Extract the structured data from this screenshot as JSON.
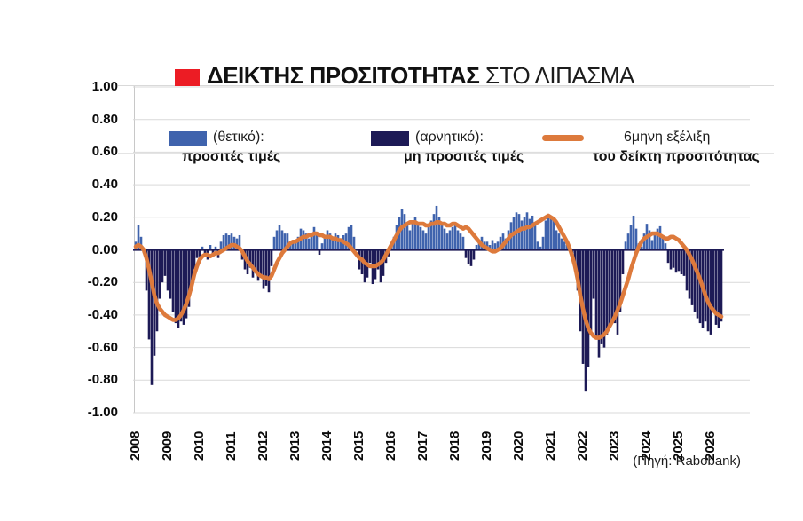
{
  "title": {
    "highlight": "ΔΕΙΚΤΗΣ ΠΡΟΣΙΤΟΤΗΤΑΣ",
    "rest": " ΣΤΟ ΛΙΠΑΣΜΑ"
  },
  "source": "(Πηγή: Rabobank)",
  "legend": {
    "positive": {
      "label": "(θετικό):",
      "sublabel": "προσιτές τιμές"
    },
    "negative": {
      "label": "(αρνητικό):",
      "sublabel": "μη προσιτές τιμές"
    },
    "line": {
      "label": "6μηνη εξέλιξη",
      "sublabel": "του δείκτη προσιτότητας"
    }
  },
  "colors": {
    "positive_bar": "#3f63ad",
    "negative_bar": "#1d1a56",
    "line": "#dd7a3c",
    "title_square": "#ec1c24",
    "grid": "#d9d9d9",
    "axis": "#c8c8c8",
    "zero_axis": "#1d1a56"
  },
  "chart_data": {
    "type": "bar",
    "title": "ΔΕΙΚΤΗΣ ΠΡΟΣΙΤΟΤΗΤΑΣ ΣΤΟ ΛΙΠΑΣΜΑ",
    "frequency": "monthly",
    "start_month": "2008-01",
    "end_month": "2026-05",
    "ylim": [
      -1.0,
      1.0
    ],
    "grid": true,
    "y_ticks": [
      "1.00",
      "0.80",
      "0.60",
      "0.40",
      "0.20",
      "0.00",
      "-0.20",
      "-0.40",
      "-0.60",
      "-0.80",
      "-1.00"
    ],
    "x_years": [
      "2008",
      "2009",
      "2010",
      "2011",
      "2012",
      "2013",
      "2014",
      "2015",
      "2016",
      "2017",
      "2018",
      "2019",
      "2020",
      "2021",
      "2022",
      "2023",
      "2024",
      "2025",
      "2026"
    ],
    "series": [
      {
        "name": "affordability index (monthly bars: blue positive / navy negative)",
        "by_year": {
          "2008": [
            0.05,
            0.15,
            0.08,
            -0.02,
            -0.25,
            -0.55,
            -0.83,
            -0.65,
            -0.5,
            -0.3,
            -0.2,
            -0.16
          ],
          "2009": [
            -0.25,
            -0.3,
            -0.38,
            -0.45,
            -0.48,
            -0.44,
            -0.46,
            -0.42,
            -0.35,
            -0.25,
            -0.12,
            -0.05
          ],
          "2010": [
            -0.04,
            0.02,
            -0.03,
            -0.06,
            0.03,
            -0.04,
            0.02,
            -0.05,
            0.05,
            0.09,
            0.1,
            0.09
          ],
          "2011": [
            0.1,
            0.08,
            0.07,
            0.09,
            -0.06,
            -0.12,
            -0.15,
            -0.11,
            -0.17,
            -0.14,
            -0.19,
            -0.16
          ],
          "2012": [
            -0.24,
            -0.22,
            -0.26,
            -0.1,
            0.08,
            0.12,
            0.15,
            0.12,
            0.1,
            0.1,
            0.05,
            0.04
          ],
          "2013": [
            0.05,
            0.08,
            0.13,
            0.12,
            0.1,
            0.07,
            0.1,
            0.14,
            0.1,
            -0.03,
            0.04,
            0.08
          ],
          "2014": [
            0.12,
            0.1,
            0.08,
            0.1,
            0.09,
            0.07,
            0.09,
            0.1,
            0.14,
            0.15,
            0.08,
            0.0
          ],
          "2015": [
            -0.12,
            -0.15,
            -0.2,
            -0.17,
            -0.08,
            -0.21,
            -0.18,
            -0.12,
            -0.2,
            -0.16,
            -0.08,
            -0.04
          ],
          "2016": [
            0.02,
            0.08,
            0.15,
            0.2,
            0.25,
            0.22,
            0.15,
            0.12,
            0.18,
            0.2,
            0.16,
            0.14
          ],
          "2017": [
            0.12,
            0.1,
            0.15,
            0.18,
            0.22,
            0.27,
            0.2,
            0.16,
            0.13,
            0.1,
            0.12,
            0.14
          ],
          "2018": [
            0.15,
            0.12,
            0.1,
            0.08,
            -0.05,
            -0.09,
            -0.1,
            -0.06,
            0.03,
            0.06,
            0.08,
            0.05
          ],
          "2019": [
            0.05,
            0.03,
            0.06,
            0.04,
            0.05,
            0.08,
            0.1,
            0.07,
            0.12,
            0.17,
            0.2,
            0.23
          ],
          "2020": [
            0.22,
            0.18,
            0.2,
            0.23,
            0.19,
            0.21,
            0.17,
            0.05,
            0.02,
            0.08,
            0.18,
            0.2
          ],
          "2021": [
            0.21,
            0.18,
            0.12,
            0.1,
            0.07,
            0.05,
            0.03,
            0.01,
            -0.02,
            -0.1,
            -0.25,
            -0.5
          ],
          "2022": [
            -0.7,
            -0.87,
            -0.72,
            -0.5,
            -0.3,
            -0.55,
            -0.66,
            -0.58,
            -0.6,
            -0.52,
            -0.48,
            -0.45
          ],
          "2023": [
            -0.45,
            -0.52,
            -0.38,
            -0.15,
            0.05,
            0.1,
            0.15,
            0.21,
            0.13,
            0.04,
            0.02,
            0.1
          ],
          "2024": [
            0.16,
            0.12,
            0.06,
            0.1,
            0.13,
            0.145,
            0.08,
            0.04,
            -0.08,
            -0.12,
            -0.11,
            -0.14
          ],
          "2025": [
            -0.13,
            -0.15,
            -0.16,
            -0.25,
            -0.3,
            -0.34,
            -0.38,
            -0.42,
            -0.45,
            -0.48,
            -0.44,
            -0.5
          ],
          "2026": [
            -0.52,
            -0.38,
            -0.46,
            -0.48,
            -0.44
          ]
        }
      },
      {
        "name": "6-month evolution of the affordability index (orange line)",
        "by_year": {
          "2008": [
            0.02,
            0.03,
            0.02,
            0.0,
            -0.05,
            -0.12,
            -0.2,
            -0.28,
            -0.33,
            -0.36,
            -0.38,
            -0.4
          ],
          "2009": [
            -0.41,
            -0.42,
            -0.43,
            -0.43,
            -0.42,
            -0.4,
            -0.37,
            -0.33,
            -0.28,
            -0.22,
            -0.15,
            -0.1
          ],
          "2010": [
            -0.06,
            -0.04,
            -0.03,
            -0.03,
            -0.04,
            -0.03,
            -0.02,
            -0.02,
            -0.01,
            0.0,
            0.01,
            0.02
          ],
          "2011": [
            0.03,
            0.03,
            0.02,
            0.01,
            -0.01,
            -0.04,
            -0.07,
            -0.09,
            -0.11,
            -0.13,
            -0.15,
            -0.16
          ],
          "2012": [
            -0.17,
            -0.17,
            -0.18,
            -0.16,
            -0.12,
            -0.08,
            -0.05,
            -0.02,
            0.0,
            0.02,
            0.04,
            0.05
          ],
          "2013": [
            0.05,
            0.06,
            0.07,
            0.08,
            0.08,
            0.09,
            0.09,
            0.1,
            0.1,
            0.09,
            0.09,
            0.08
          ],
          "2014": [
            0.08,
            0.08,
            0.07,
            0.07,
            0.06,
            0.06,
            0.05,
            0.04,
            0.03,
            0.01,
            -0.01,
            -0.03
          ],
          "2015": [
            -0.05,
            -0.06,
            -0.08,
            -0.09,
            -0.1,
            -0.1,
            -0.1,
            -0.09,
            -0.08,
            -0.06,
            -0.03,
            0.0
          ],
          "2016": [
            0.03,
            0.06,
            0.09,
            0.12,
            0.14,
            0.15,
            0.16,
            0.17,
            0.17,
            0.17,
            0.16,
            0.16
          ],
          "2017": [
            0.16,
            0.15,
            0.15,
            0.16,
            0.16,
            0.17,
            0.17,
            0.16,
            0.16,
            0.15,
            0.15,
            0.16
          ],
          "2018": [
            0.16,
            0.15,
            0.14,
            0.13,
            0.14,
            0.13,
            0.11,
            0.09,
            0.07,
            0.05,
            0.03,
            0.02
          ],
          "2019": [
            0.01,
            0.0,
            -0.01,
            -0.01,
            0.0,
            0.01,
            0.03,
            0.05,
            0.07,
            0.09,
            0.1,
            0.11
          ],
          "2020": [
            0.12,
            0.13,
            0.13,
            0.14,
            0.14,
            0.15,
            0.16,
            0.17,
            0.18,
            0.19,
            0.2,
            0.21
          ],
          "2021": [
            0.2,
            0.19,
            0.17,
            0.14,
            0.11,
            0.08,
            0.05,
            0.01,
            -0.04,
            -0.1,
            -0.18,
            -0.28
          ],
          "2022": [
            -0.36,
            -0.43,
            -0.48,
            -0.51,
            -0.53,
            -0.54,
            -0.54,
            -0.53,
            -0.52,
            -0.5,
            -0.47,
            -0.44
          ],
          "2023": [
            -0.41,
            -0.37,
            -0.33,
            -0.28,
            -0.23,
            -0.18,
            -0.12,
            -0.07,
            -0.02,
            0.02,
            0.05,
            0.07
          ],
          "2024": [
            0.08,
            0.09,
            0.1,
            0.1,
            0.1,
            0.09,
            0.08,
            0.07,
            0.07,
            0.08,
            0.08,
            0.07
          ],
          "2025": [
            0.06,
            0.04,
            0.02,
            0.0,
            -0.03,
            -0.06,
            -0.1,
            -0.14,
            -0.18,
            -0.23,
            -0.28,
            -0.32
          ],
          "2026": [
            -0.35,
            -0.37,
            -0.39,
            -0.4,
            -0.41
          ]
        }
      }
    ]
  }
}
